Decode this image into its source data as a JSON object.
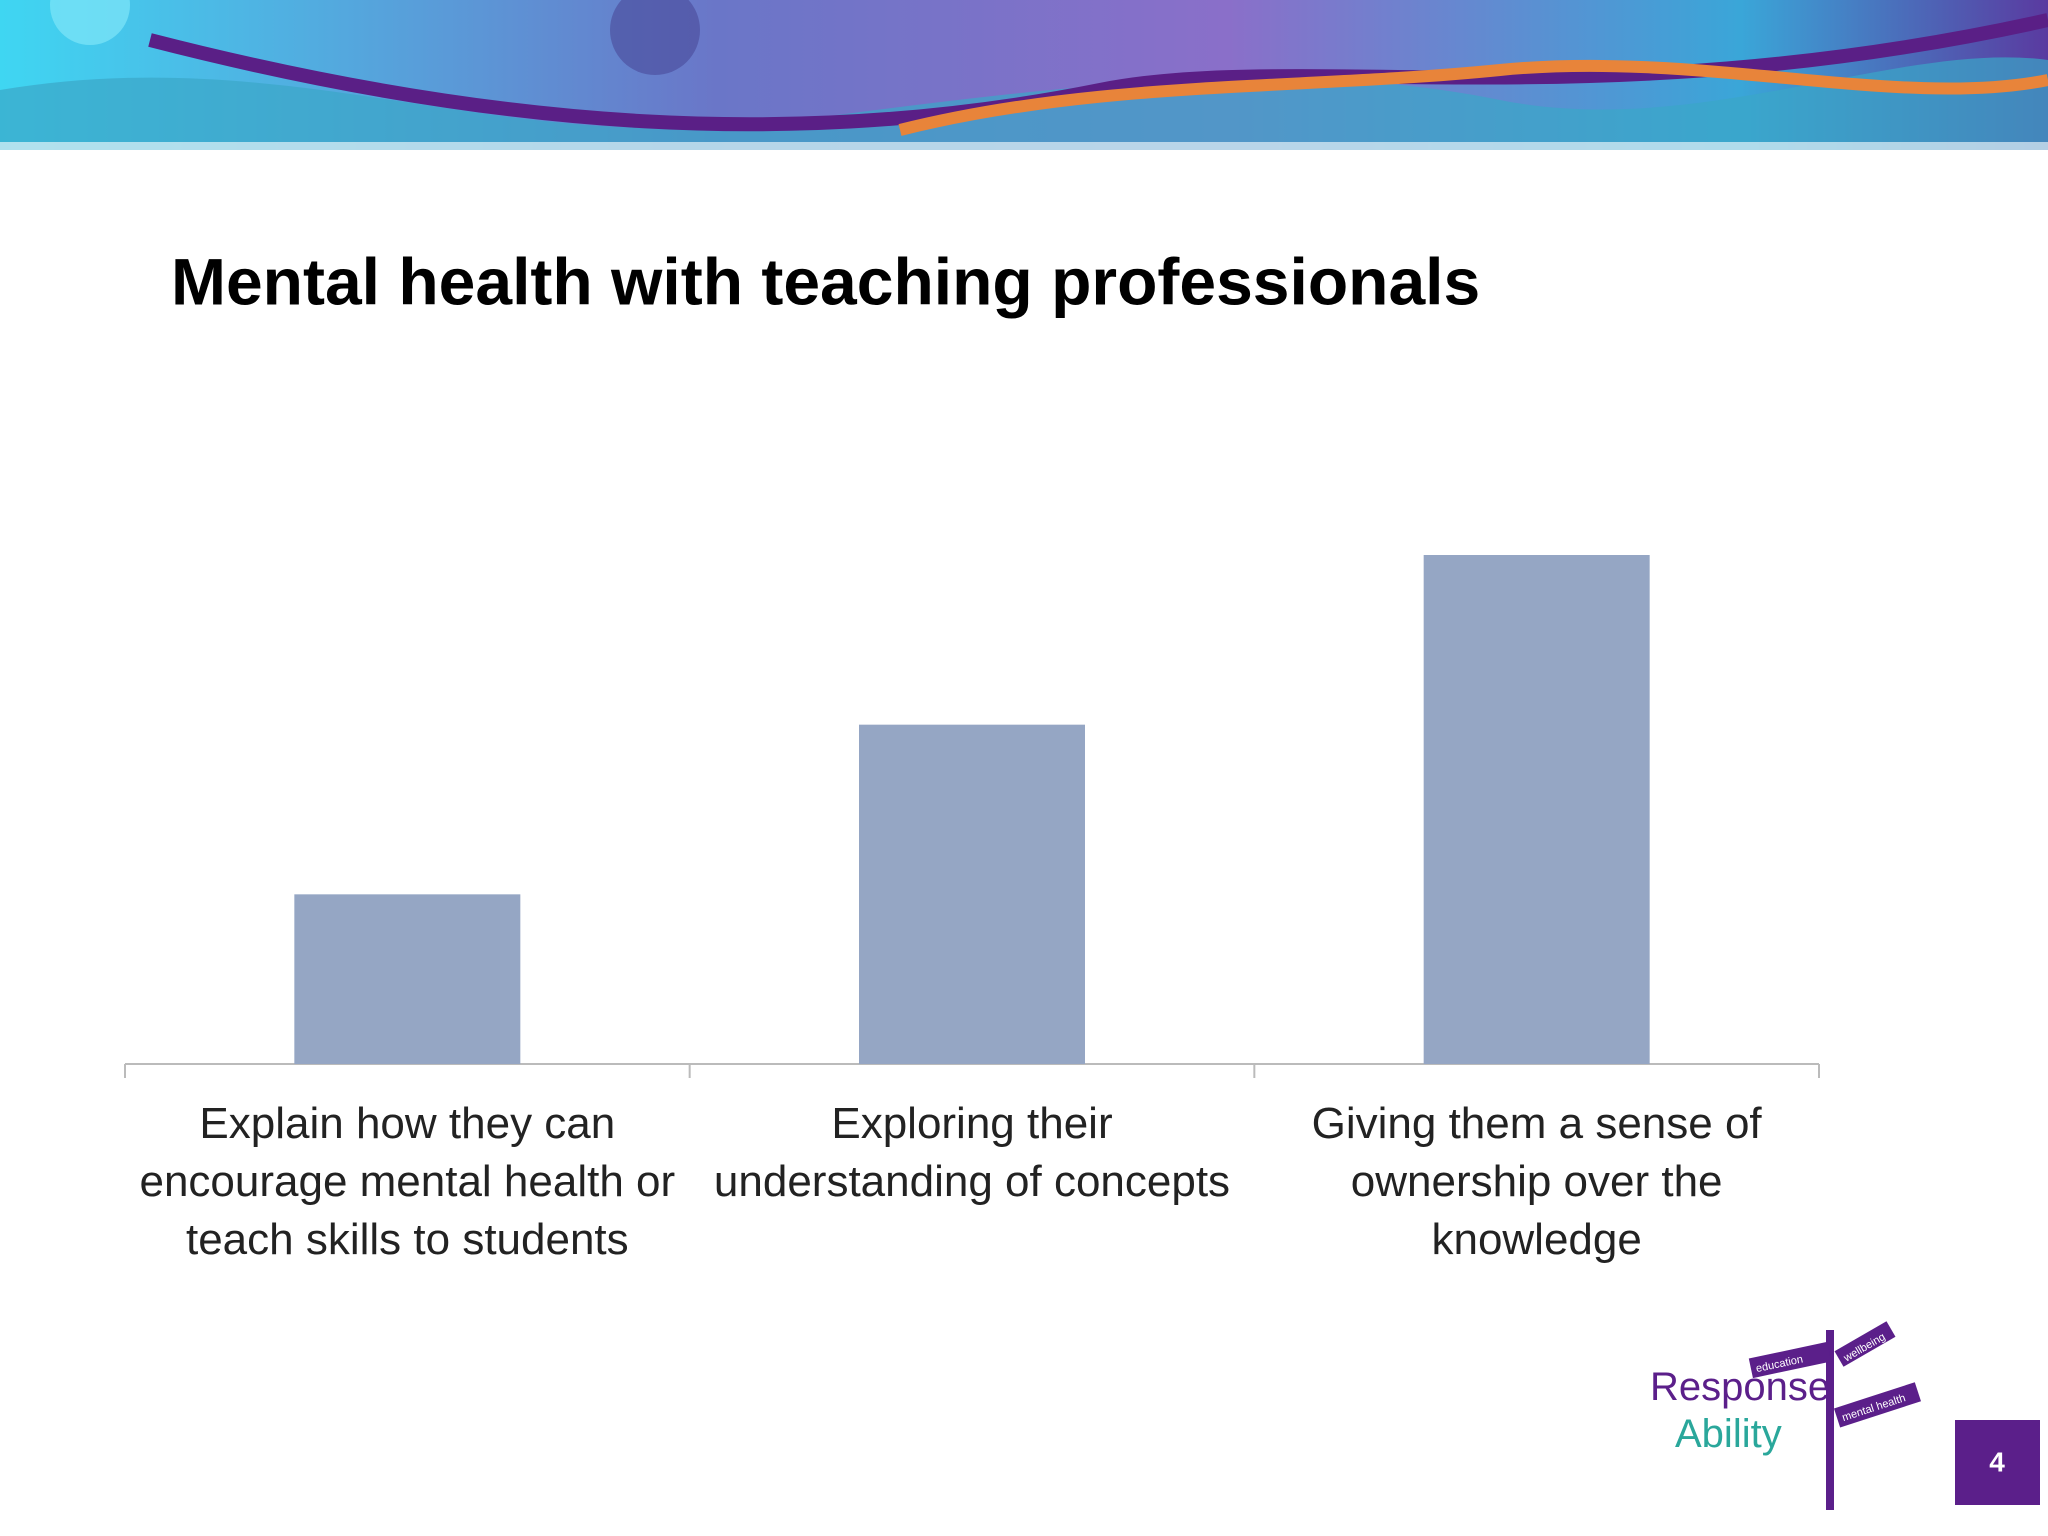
{
  "chart_data": {
    "type": "bar",
    "title": "Mental health with teaching professionals",
    "categories": [
      "Explain how they can encourage mental health or teach skills to students",
      "Exploring their understanding of concepts",
      "Giving them a sense of ownership over the knowledge"
    ],
    "values": [
      1,
      2,
      3
    ],
    "color": "#95a6c4"
  },
  "logo": {
    "line1": "Response",
    "line2": "Ability",
    "signs": [
      "education",
      "wellbeing",
      "mental health"
    ]
  },
  "slide_number": "4"
}
